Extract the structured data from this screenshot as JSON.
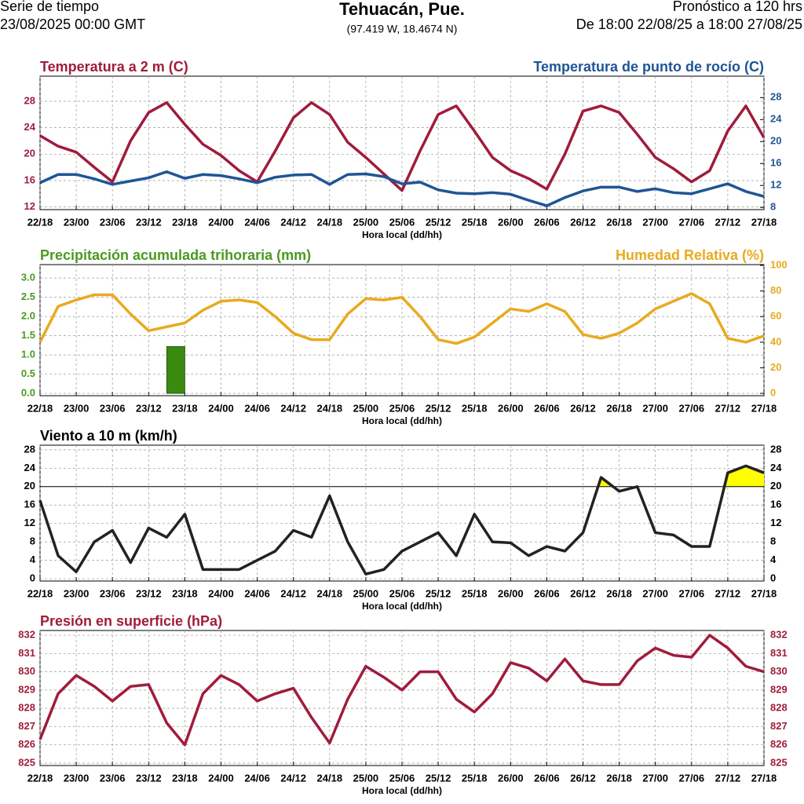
{
  "header": {
    "left_title": "Serie de tiempo",
    "left_date": "23/08/2025 00:00 GMT",
    "title": "Tehuacán, Pue.",
    "subtitle": "(97.419 W, 18.4674 N)",
    "right_title": "Pronóstico a 120 hrs",
    "right_range": "De 18:00 22/08/25 a 18:00 27/08/25"
  },
  "chart_data": [
    {
      "type": "line",
      "title": "Temperatura a 2 m (C)",
      "title_right": "Temperatura de punto de rocío (C)",
      "xlabel": "Hora local (dd/hh)",
      "grid": true,
      "ycolor": "#a01c3c",
      "y2color": "#1f5596",
      "x": [
        0,
        3,
        6,
        9,
        12,
        15,
        18,
        21,
        24,
        27,
        30,
        33,
        36,
        39,
        42,
        45,
        48,
        51,
        54,
        57,
        60,
        63,
        66,
        69,
        72,
        75,
        78,
        81,
        84,
        87,
        90,
        93,
        96,
        99,
        102,
        105,
        108,
        111,
        114,
        117,
        120
      ],
      "xlim": [
        0,
        120
      ],
      "xticks": [
        {
          "value": 0,
          "label": "22/18"
        },
        {
          "value": 6,
          "label": "23/00"
        },
        {
          "value": 12,
          "label": "23/06"
        },
        {
          "value": 18,
          "label": "23/12"
        },
        {
          "value": 24,
          "label": "23/18"
        },
        {
          "value": 30,
          "label": "24/00"
        },
        {
          "value": 36,
          "label": "24/06"
        },
        {
          "value": 42,
          "label": "24/12"
        },
        {
          "value": 48,
          "label": "24/18"
        },
        {
          "value": 54,
          "label": "25/00"
        },
        {
          "value": 60,
          "label": "25/06"
        },
        {
          "value": 66,
          "label": "25/12"
        },
        {
          "value": 72,
          "label": "25/18"
        },
        {
          "value": 78,
          "label": "26/00"
        },
        {
          "value": 84,
          "label": "26/06"
        },
        {
          "value": 90,
          "label": "26/12"
        },
        {
          "value": 96,
          "label": "26/18"
        },
        {
          "value": 102,
          "label": "27/00"
        },
        {
          "value": 108,
          "label": "27/06"
        },
        {
          "value": 114,
          "label": "27/12"
        },
        {
          "value": 120,
          "label": "27/18"
        }
      ],
      "ylim": [
        11.6,
        31.8
      ],
      "yticks": [
        12,
        16,
        20,
        24,
        28
      ],
      "y2lim": [
        7.6,
        31.9
      ],
      "y2ticks": [
        8,
        12,
        16,
        20,
        24,
        28
      ],
      "series": [
        {
          "name": "Temperatura a 2 m",
          "color": "#a01c3c",
          "values": [
            22.8,
            21.2,
            20.3,
            18.0,
            15.8,
            22.0,
            26.3,
            27.8,
            24.5,
            21.5,
            19.8,
            17.5,
            15.8,
            20.5,
            25.5,
            27.8,
            26.0,
            21.8,
            19.5,
            17.0,
            14.5,
            20.5,
            26.0,
            27.3,
            23.5,
            19.5,
            17.5,
            16.3,
            14.7,
            20.0,
            26.5,
            27.3,
            26.3,
            23.0,
            19.5,
            17.8,
            15.8,
            17.5,
            23.5,
            27.3,
            22.5
          ]
        },
        {
          "name": "Temperatura de punto de rocío",
          "color": "#1f5596",
          "axis": "y2",
          "values": [
            12.5,
            14.0,
            14.0,
            13.2,
            12.2,
            12.8,
            13.4,
            14.5,
            13.3,
            14.0,
            13.8,
            13.2,
            12.5,
            13.5,
            13.9,
            14.0,
            12.2,
            14.0,
            14.1,
            13.6,
            12.3,
            12.6,
            11.2,
            10.6,
            10.5,
            10.7,
            10.4,
            9.3,
            8.3,
            9.8,
            11.0,
            11.7,
            11.7,
            10.9,
            11.4,
            10.7,
            10.5,
            11.4,
            12.3,
            10.9,
            10.0
          ]
        }
      ]
    },
    {
      "type": "line",
      "title": "Precipitación acumulada trihoraria (mm)",
      "title_right": "Humedad Relativa (%)",
      "xlabel": "Hora local (dd/hh)",
      "grid": true,
      "ycolor": "#4a9a20",
      "y2color": "#e8aa20",
      "x": [
        0,
        3,
        6,
        9,
        12,
        15,
        18,
        21,
        24,
        27,
        30,
        33,
        36,
        39,
        42,
        45,
        48,
        51,
        54,
        57,
        60,
        63,
        66,
        69,
        72,
        75,
        78,
        81,
        84,
        87,
        90,
        93,
        96,
        99,
        102,
        105,
        108,
        111,
        114,
        117,
        120
      ],
      "xlim": [
        0,
        120
      ],
      "xticks": [
        {
          "value": 0,
          "label": "22/18"
        },
        {
          "value": 6,
          "label": "23/00"
        },
        {
          "value": 12,
          "label": "23/06"
        },
        {
          "value": 18,
          "label": "23/12"
        },
        {
          "value": 24,
          "label": "23/18"
        },
        {
          "value": 30,
          "label": "24/00"
        },
        {
          "value": 36,
          "label": "24/06"
        },
        {
          "value": 42,
          "label": "24/12"
        },
        {
          "value": 48,
          "label": "24/18"
        },
        {
          "value": 54,
          "label": "25/00"
        },
        {
          "value": 60,
          "label": "25/06"
        },
        {
          "value": 66,
          "label": "25/12"
        },
        {
          "value": 72,
          "label": "25/18"
        },
        {
          "value": 78,
          "label": "26/00"
        },
        {
          "value": 84,
          "label": "26/06"
        },
        {
          "value": 90,
          "label": "26/12"
        },
        {
          "value": 96,
          "label": "26/18"
        },
        {
          "value": 102,
          "label": "27/00"
        },
        {
          "value": 108,
          "label": "27/06"
        },
        {
          "value": 114,
          "label": "27/12"
        },
        {
          "value": 120,
          "label": "27/18"
        }
      ],
      "ylim": [
        -0.06,
        3.35
      ],
      "yticks": [
        {
          "value": 0,
          "label": "0.0"
        },
        {
          "value": 0.5,
          "label": "0.5"
        },
        {
          "value": 1,
          "label": "1.0"
        },
        {
          "value": 1.5,
          "label": "1.5"
        },
        {
          "value": 2,
          "label": "2.0"
        },
        {
          "value": 2.5,
          "label": "2.5"
        },
        {
          "value": 3,
          "label": "3.0"
        }
      ],
      "y2lim": [
        -1.8,
        100.6
      ],
      "y2ticks": [
        0,
        20,
        40,
        60,
        80,
        100
      ],
      "series": [
        {
          "name": "Precipitación acumulada trihoraria",
          "type": "bar",
          "color": "#3a8a10",
          "values": [
            0,
            0,
            0,
            0,
            0,
            0,
            0,
            0,
            1.22,
            0,
            0,
            0,
            0,
            0,
            0,
            0,
            0,
            0,
            0,
            0,
            0,
            0,
            0,
            0,
            0,
            0,
            0,
            0,
            0,
            0,
            0,
            0,
            0,
            0,
            0,
            0,
            0,
            0,
            0,
            0,
            0
          ]
        },
        {
          "name": "Humedad Relativa",
          "color": "#e8aa20",
          "axis": "y2",
          "values": [
            40,
            68,
            73,
            77,
            77,
            62,
            49,
            52,
            55,
            65,
            72,
            73,
            71,
            60,
            47,
            42,
            42,
            62,
            74,
            73,
            75,
            60,
            42,
            39,
            44,
            55,
            66,
            64,
            70,
            64,
            46,
            43,
            47,
            55,
            66,
            72,
            78,
            70,
            43,
            40,
            45
          ]
        }
      ]
    },
    {
      "type": "line",
      "title": "Viento a 10 m (km/h)",
      "xlabel": "Hora local (dd/hh)",
      "grid": true,
      "mirror_y": true,
      "ycolor": "#000000",
      "threshold": 20,
      "threshold_color": "#ffff00",
      "x": [
        0,
        3,
        6,
        9,
        12,
        15,
        18,
        21,
        24,
        27,
        30,
        33,
        36,
        39,
        42,
        45,
        48,
        51,
        54,
        57,
        60,
        63,
        66,
        69,
        72,
        75,
        78,
        81,
        84,
        87,
        90,
        93,
        96,
        99,
        102,
        105,
        108,
        111,
        114,
        117,
        120
      ],
      "xlim": [
        0,
        120
      ],
      "xticks": [
        {
          "value": 0,
          "label": "22/18"
        },
        {
          "value": 6,
          "label": "23/00"
        },
        {
          "value": 12,
          "label": "23/06"
        },
        {
          "value": 18,
          "label": "23/12"
        },
        {
          "value": 24,
          "label": "23/18"
        },
        {
          "value": 30,
          "label": "24/00"
        },
        {
          "value": 36,
          "label": "24/06"
        },
        {
          "value": 42,
          "label": "24/12"
        },
        {
          "value": 48,
          "label": "24/18"
        },
        {
          "value": 54,
          "label": "25/00"
        },
        {
          "value": 60,
          "label": "25/06"
        },
        {
          "value": 66,
          "label": "25/12"
        },
        {
          "value": 72,
          "label": "25/18"
        },
        {
          "value": 78,
          "label": "26/00"
        },
        {
          "value": 84,
          "label": "26/06"
        },
        {
          "value": 90,
          "label": "26/12"
        },
        {
          "value": 96,
          "label": "26/18"
        },
        {
          "value": 102,
          "label": "27/00"
        },
        {
          "value": 108,
          "label": "27/06"
        },
        {
          "value": 114,
          "label": "27/12"
        },
        {
          "value": 120,
          "label": "27/18"
        }
      ],
      "ylim": [
        -0.5,
        29
      ],
      "yticks": [
        0,
        4,
        8,
        12,
        16,
        20,
        24,
        28
      ],
      "series": [
        {
          "name": "Viento a 10 m",
          "color": "#222222",
          "values": [
            17,
            5,
            1.5,
            8,
            10.5,
            3.5,
            11,
            9,
            14,
            2,
            2,
            2,
            4,
            6,
            10.5,
            9,
            18,
            8,
            1,
            2,
            6,
            8,
            10,
            5,
            14,
            8,
            7.8,
            5,
            7,
            6,
            10,
            22,
            19,
            20,
            10,
            9.5,
            7,
            7,
            23,
            24.5,
            23
          ]
        }
      ]
    },
    {
      "type": "line",
      "title": "Presión en superficie (hPa)",
      "xlabel": "Hora local (dd/hh)",
      "grid": true,
      "mirror_y": true,
      "ycolor": "#a01c3c",
      "x": [
        0,
        3,
        6,
        9,
        12,
        15,
        18,
        21,
        24,
        27,
        30,
        33,
        36,
        39,
        42,
        45,
        48,
        51,
        54,
        57,
        60,
        63,
        66,
        69,
        72,
        75,
        78,
        81,
        84,
        87,
        90,
        93,
        96,
        99,
        102,
        105,
        108,
        111,
        114,
        117,
        120
      ],
      "xlim": [
        0,
        120
      ],
      "xticks": [
        {
          "value": 0,
          "label": "22/18"
        },
        {
          "value": 6,
          "label": "23/00"
        },
        {
          "value": 12,
          "label": "23/06"
        },
        {
          "value": 18,
          "label": "23/12"
        },
        {
          "value": 24,
          "label": "23/18"
        },
        {
          "value": 30,
          "label": "24/00"
        },
        {
          "value": 36,
          "label": "24/06"
        },
        {
          "value": 42,
          "label": "24/12"
        },
        {
          "value": 48,
          "label": "24/18"
        },
        {
          "value": 54,
          "label": "25/00"
        },
        {
          "value": 60,
          "label": "25/06"
        },
        {
          "value": 66,
          "label": "25/12"
        },
        {
          "value": 72,
          "label": "25/18"
        },
        {
          "value": 78,
          "label": "26/00"
        },
        {
          "value": 84,
          "label": "26/06"
        },
        {
          "value": 90,
          "label": "26/12"
        },
        {
          "value": 96,
          "label": "26/18"
        },
        {
          "value": 102,
          "label": "27/00"
        },
        {
          "value": 108,
          "label": "27/06"
        },
        {
          "value": 114,
          "label": "27/12"
        },
        {
          "value": 120,
          "label": "27/18"
        }
      ],
      "ylim": [
        824.87,
        832.26
      ],
      "yticks": [
        825,
        826,
        827,
        828,
        829,
        830,
        831,
        832
      ],
      "series": [
        {
          "name": "Presión en superficie",
          "color": "#a01c3c",
          "values": [
            826.3,
            828.8,
            829.8,
            829.2,
            828.4,
            829.2,
            829.3,
            827.2,
            826.0,
            828.8,
            829.8,
            829.3,
            828.4,
            828.8,
            829.1,
            827.5,
            826.1,
            828.5,
            830.3,
            829.7,
            829.0,
            830.0,
            830.0,
            828.5,
            827.8,
            828.8,
            830.5,
            830.2,
            829.5,
            830.7,
            829.5,
            829.3,
            829.3,
            830.6,
            831.3,
            830.9,
            830.8,
            832.0,
            831.3,
            830.3,
            830.0
          ]
        }
      ]
    }
  ]
}
